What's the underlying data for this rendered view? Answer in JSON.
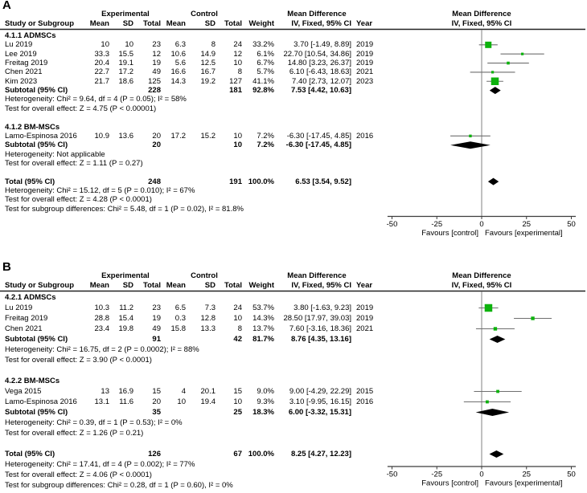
{
  "figure": {
    "table_header": {
      "group_experimental": "Experimental",
      "group_control": "Control",
      "group_mean_difference": "Mean Difference",
      "study": "Study or Subgroup",
      "mean": "Mean",
      "sd": "SD",
      "total": "Total",
      "weight": "Weight",
      "iv": "IV, Fixed, 95% CI",
      "year": "Year",
      "plot_line1": "Mean Difference",
      "plot_line2": "IV, Fixed, 95% CI"
    },
    "colors": {
      "marker_green": "#0db20d",
      "diamond_black": "#000000",
      "ci_line_gray": "#6f6f6f",
      "zero_line_gray": "#808080",
      "axis_dark": "#3c3c3c",
      "rule_dark": "#222222",
      "text": "#000000",
      "background": "#ffffff"
    }
  },
  "chart_data": [
    {
      "type": "forest",
      "label": "A",
      "effect_measure": "Mean Difference",
      "method": "IV, Fixed, 95% CI",
      "axis": {
        "min": -57,
        "max": 57,
        "ticks": [
          -50,
          -25,
          0,
          25,
          50
        ],
        "favours_left": "Favours [control]",
        "favours_right": "Favours [experimental]"
      },
      "rows": [
        {
          "type": "subgroup",
          "label": "4.1.1 ADMSCs"
        },
        {
          "type": "study",
          "study": "Lu 2019",
          "e_mean": "10",
          "e_sd": "10",
          "e_total": "23",
          "c_mean": "6.3",
          "c_sd": "8",
          "c_total": "24",
          "weight": "33.2%",
          "ci": "3.70 [-1.49, 8.89]",
          "year": "2019",
          "est": 3.7,
          "lo": -1.49,
          "hi": 8.89,
          "ms": 8
        },
        {
          "type": "study",
          "study": "Lee 2019",
          "e_mean": "33.3",
          "e_sd": "15.5",
          "e_total": "12",
          "c_mean": "10.6",
          "c_sd": "14.9",
          "c_total": "12",
          "weight": "6.1%",
          "ci": "22.70 [10.54, 34.86]",
          "year": "2019",
          "est": 22.7,
          "lo": 10.54,
          "hi": 34.86,
          "ms": 3.2
        },
        {
          "type": "study",
          "study": "Freitag 2019",
          "e_mean": "20.4",
          "e_sd": "19.1",
          "e_total": "19",
          "c_mean": "5.6",
          "c_sd": "12.5",
          "c_total": "10",
          "weight": "6.7%",
          "ci": "14.80 [3.23, 26.37]",
          "year": "2019",
          "est": 14.8,
          "lo": 3.23,
          "hi": 26.37,
          "ms": 3.6
        },
        {
          "type": "study",
          "study": "Chen 2021",
          "e_mean": "22.7",
          "e_sd": "17.2",
          "e_total": "49",
          "c_mean": "16.6",
          "c_sd": "16.7",
          "c_total": "8",
          "weight": "5.7%",
          "ci": "6.10 [-6.43, 18.63]",
          "year": "2021",
          "est": 6.1,
          "lo": -6.43,
          "hi": 18.63,
          "ms": 3.2
        },
        {
          "type": "study",
          "study": "Kim 2023",
          "e_mean": "21.7",
          "e_sd": "18.6",
          "e_total": "125",
          "c_mean": "14.3",
          "c_sd": "19.2",
          "c_total": "127",
          "weight": "41.1%",
          "ci": "7.40 [2.73, 12.07]",
          "year": "2023",
          "est": 7.4,
          "lo": 2.73,
          "hi": 12.07,
          "ms": 9.5
        },
        {
          "type": "subtotal",
          "label": "Subtotal (95% CI)",
          "e_total": "228",
          "c_total": "181",
          "weight": "92.8%",
          "ci": "7.53 [4.42, 10.63]",
          "est": 7.53,
          "lo": 4.42,
          "hi": 10.63
        },
        {
          "type": "note",
          "text": "Heterogeneity: Chi² = 9.64, df = 4 (P = 0.05); I² = 58%"
        },
        {
          "type": "note",
          "text": "Test for overall effect: Z = 4.75 (P < 0.00001)"
        },
        {
          "type": "blank"
        },
        {
          "type": "subgroup",
          "label": "4.1.2 BM-MSCs"
        },
        {
          "type": "study",
          "study": "Lamo-Espinosa 2016",
          "e_mean": "10.9",
          "e_sd": "13.6",
          "e_total": "20",
          "c_mean": "17.2",
          "c_sd": "15.2",
          "c_total": "10",
          "weight": "7.2%",
          "ci": "-6.30 [-17.45, 4.85]",
          "year": "2016",
          "est": -6.3,
          "lo": -17.45,
          "hi": 4.85,
          "ms": 3.4
        },
        {
          "type": "subtotal",
          "label": "Subtotal (95% CI)",
          "e_total": "20",
          "c_total": "10",
          "weight": "7.2%",
          "ci": "-6.30 [-17.45, 4.85]",
          "est": -6.3,
          "lo": -17.45,
          "hi": 4.85
        },
        {
          "type": "note",
          "text": "Heterogeneity: Not applicable"
        },
        {
          "type": "note",
          "text": "Test for overall effect: Z = 1.11 (P = 0.27)"
        },
        {
          "type": "blank"
        },
        {
          "type": "total",
          "label": "Total (95% CI)",
          "e_total": "248",
          "c_total": "191",
          "weight": "100.0%",
          "ci": "6.53 [3.54, 9.52]",
          "est": 6.53,
          "lo": 3.54,
          "hi": 9.52
        },
        {
          "type": "note",
          "text": "Heterogeneity: Chi² = 15.12, df = 5 (P = 0.010); I² = 67%"
        },
        {
          "type": "note",
          "text": "Test for overall effect: Z = 4.28 (P < 0.0001)"
        },
        {
          "type": "note",
          "text": "Test for subgroup differences: Chi² = 5.48, df = 1 (P = 0.02), I² = 81.8%"
        }
      ]
    },
    {
      "type": "forest",
      "label": "B",
      "effect_measure": "Mean Difference",
      "method": "IV, Fixed, 95% CI",
      "axis": {
        "min": -57,
        "max": 57,
        "ticks": [
          -50,
          -25,
          0,
          25,
          50
        ],
        "favours_left": "Favours [control]",
        "favours_right": "Favours [experimental]"
      },
      "rows": [
        {
          "type": "subgroup",
          "label": "4.2.1 ADMSCs"
        },
        {
          "type": "study",
          "study": "Lu 2019",
          "e_mean": "10.3",
          "e_sd": "11.2",
          "e_total": "23",
          "c_mean": "6.5",
          "c_sd": "7.3",
          "c_total": "24",
          "weight": "53.7%",
          "ci": "3.80 [-1.63, 9.23]",
          "year": "2019",
          "est": 3.8,
          "lo": -1.63,
          "hi": 9.23,
          "ms": 9.5
        },
        {
          "type": "study",
          "study": "Freitag 2019",
          "e_mean": "28.8",
          "e_sd": "15.4",
          "e_total": "19",
          "c_mean": "0.3",
          "c_sd": "12.8",
          "c_total": "10",
          "weight": "14.3%",
          "ci": "28.50 [17.97, 39.03]",
          "year": "2019",
          "est": 28.5,
          "lo": 17.97,
          "hi": 39.03,
          "ms": 4.4
        },
        {
          "type": "study",
          "study": "Chen 2021",
          "e_mean": "23.4",
          "e_sd": "19.8",
          "e_total": "49",
          "c_mean": "15.8",
          "c_sd": "13.3",
          "c_total": "8",
          "weight": "13.7%",
          "ci": "7.60 [-3.16, 18.36]",
          "year": "2021",
          "est": 7.6,
          "lo": -3.16,
          "hi": 18.36,
          "ms": 4.4
        },
        {
          "type": "subtotal",
          "label": "Subtotal (95% CI)",
          "e_total": "91",
          "c_total": "42",
          "weight": "81.7%",
          "ci": "8.76 [4.35, 13.16]",
          "est": 8.76,
          "lo": 4.35,
          "hi": 13.16
        },
        {
          "type": "note",
          "text": "Heterogeneity: Chi² = 16.75, df = 2 (P = 0.0002); I² = 88%"
        },
        {
          "type": "note",
          "text": "Test for overall effect: Z = 3.90 (P < 0.0001)"
        },
        {
          "type": "blank"
        },
        {
          "type": "subgroup",
          "label": "4.2.2 BM-MSCs"
        },
        {
          "type": "study",
          "study": "Vega 2015",
          "e_mean": "13",
          "e_sd": "16.9",
          "e_total": "15",
          "c_mean": "4",
          "c_sd": "20.1",
          "c_total": "15",
          "weight": "9.0%",
          "ci": "9.00 [-4.29, 22.29]",
          "year": "2015",
          "est": 9.0,
          "lo": -4.29,
          "hi": 22.29,
          "ms": 3.8
        },
        {
          "type": "study",
          "study": "Lamo-Espinosa 2016",
          "e_mean": "13.1",
          "e_sd": "11.6",
          "e_total": "20",
          "c_mean": "10",
          "c_sd": "19.4",
          "c_total": "10",
          "weight": "9.3%",
          "ci": "3.10 [-9.95, 16.15]",
          "year": "2016",
          "est": 3.1,
          "lo": -9.95,
          "hi": 16.15,
          "ms": 3.8
        },
        {
          "type": "subtotal",
          "label": "Subtotal (95% CI)",
          "e_total": "35",
          "c_total": "25",
          "weight": "18.3%",
          "ci": "6.00 [-3.32, 15.31]",
          "est": 6.0,
          "lo": -3.32,
          "hi": 15.31
        },
        {
          "type": "note",
          "text": "Heterogeneity: Chi² = 0.39, df = 1 (P = 0.53); I² = 0%"
        },
        {
          "type": "note",
          "text": "Test for overall effect: Z = 1.26 (P = 0.21)"
        },
        {
          "type": "blank"
        },
        {
          "type": "total",
          "label": "Total (95% CI)",
          "e_total": "126",
          "c_total": "67",
          "weight": "100.0%",
          "ci": "8.25 [4.27, 12.23]",
          "est": 8.25,
          "lo": 4.27,
          "hi": 12.23
        },
        {
          "type": "note",
          "text": "Heterogeneity: Chi² = 17.41, df = 4 (P = 0.002); I² = 77%"
        },
        {
          "type": "note",
          "text": "Test for overall effect: Z = 4.06 (P < 0.0001)"
        },
        {
          "type": "note",
          "text": "Test for subgroup differences: Chi² = 0.28, df = 1 (P = 0.60), I² = 0%"
        }
      ]
    }
  ]
}
